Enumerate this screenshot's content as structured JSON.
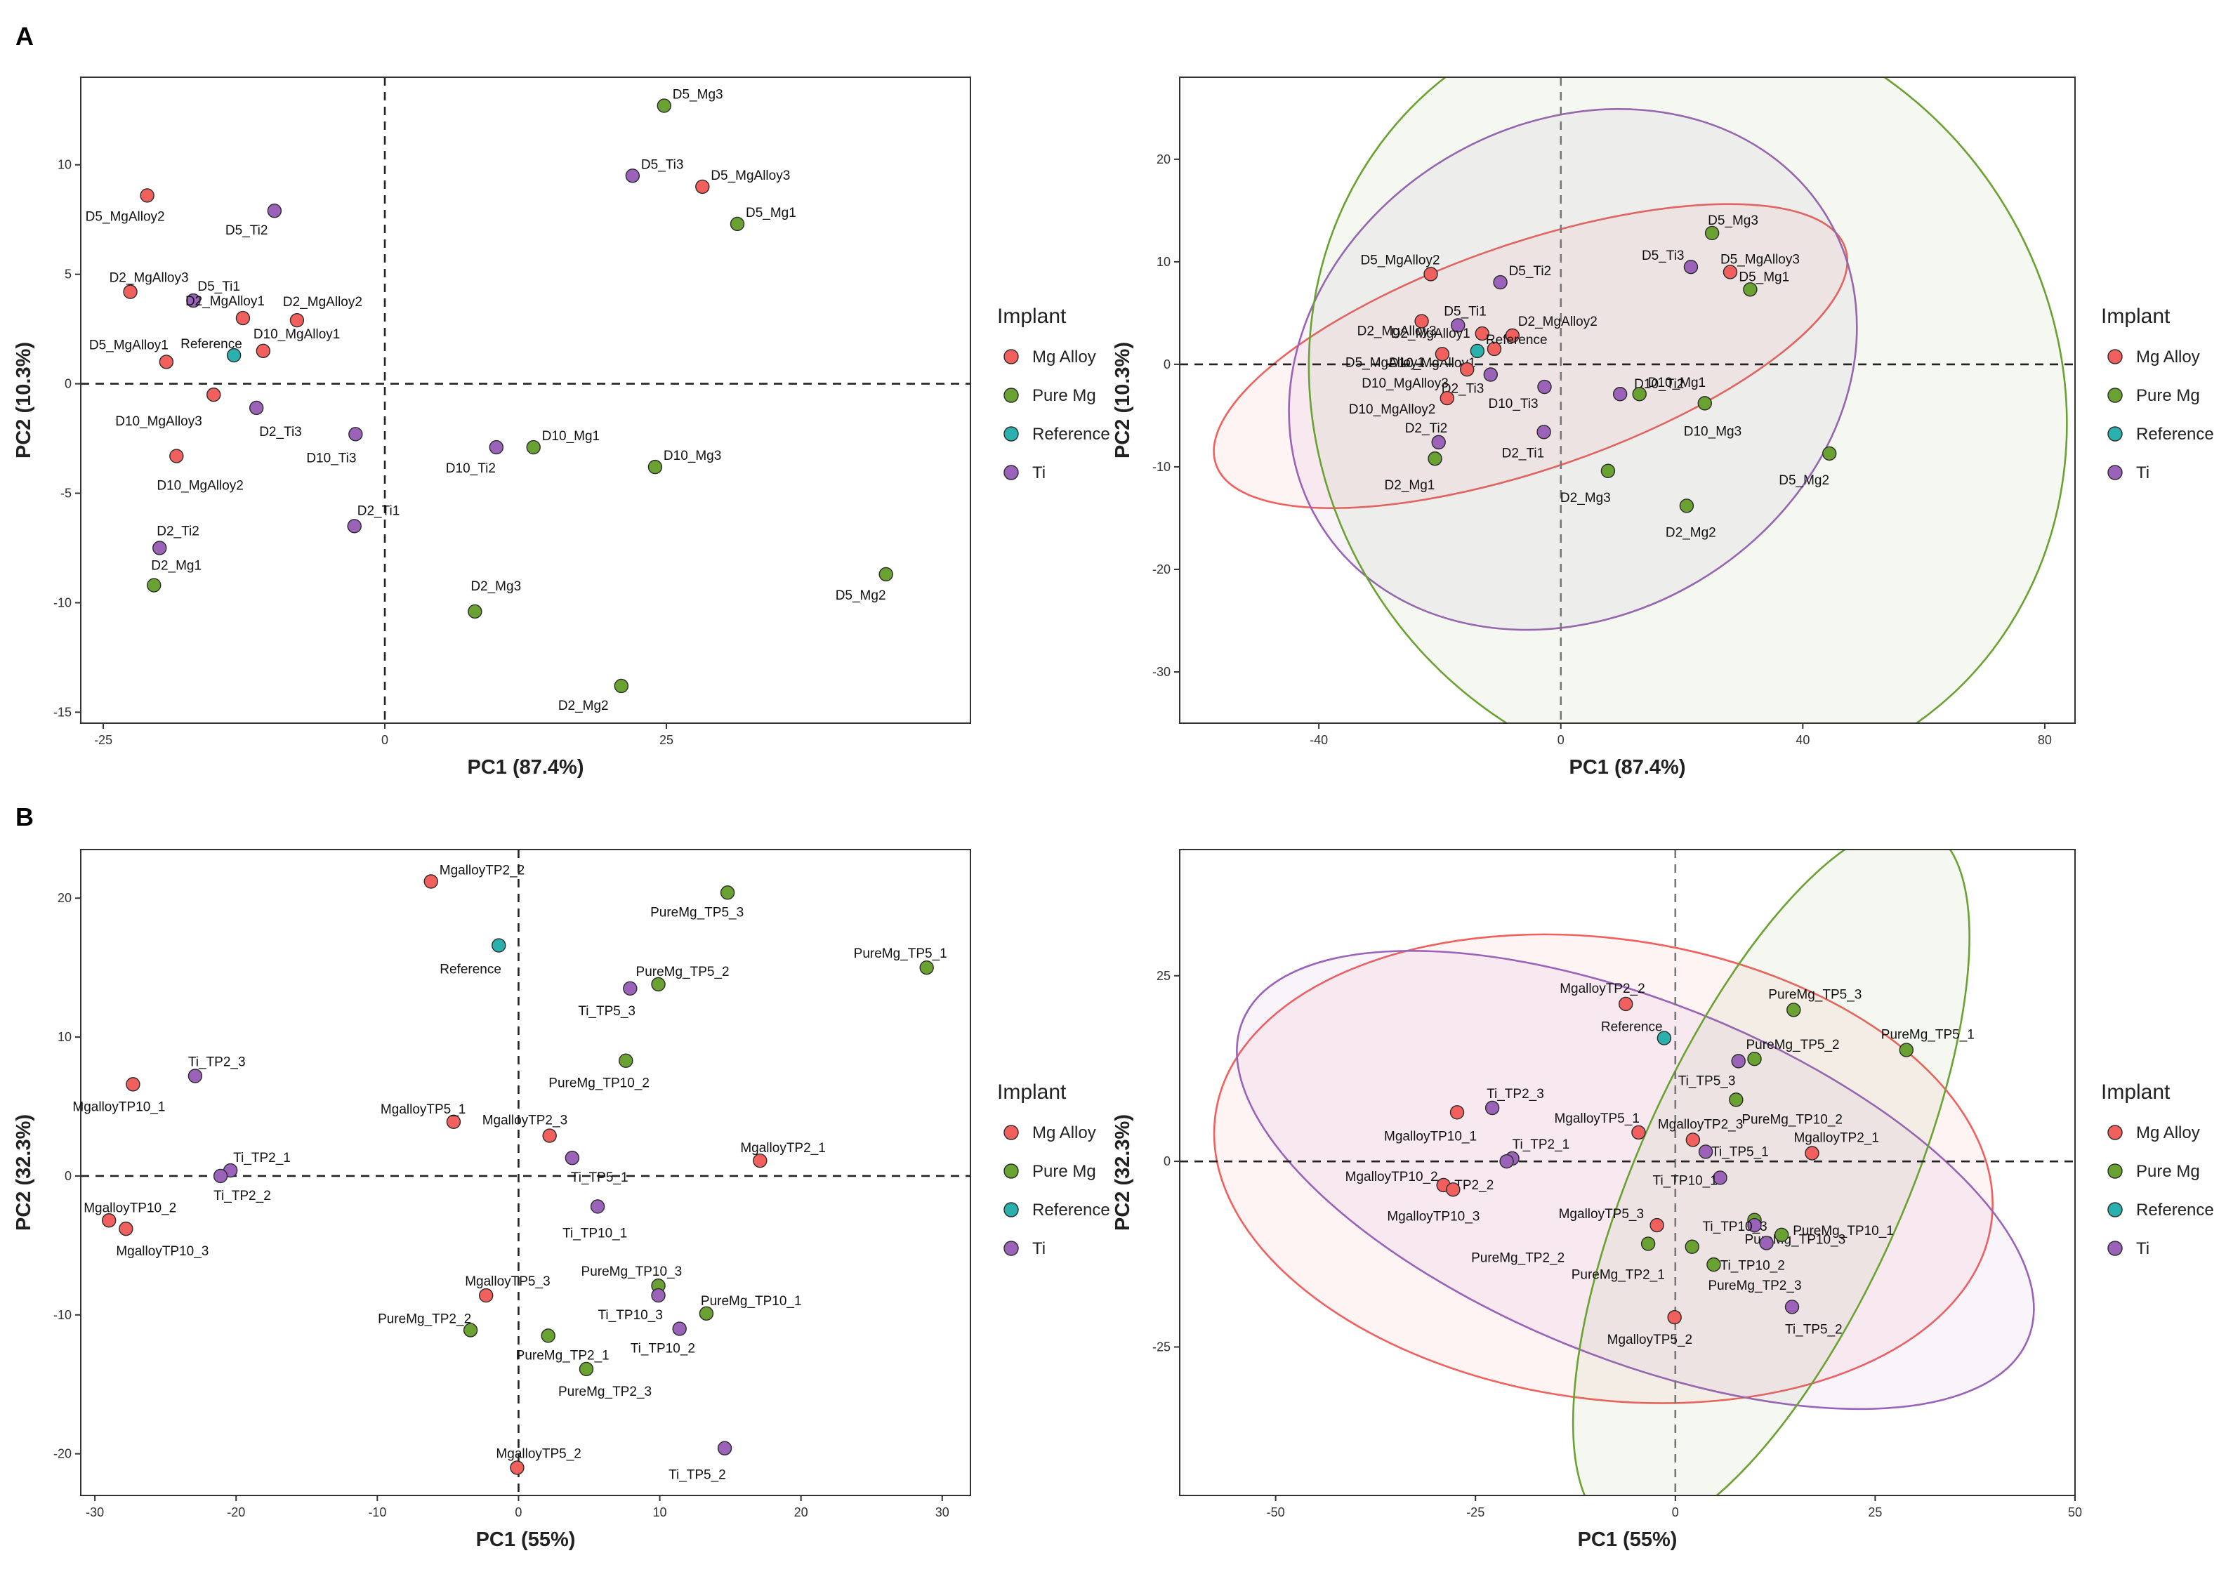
{
  "panels": [
    {
      "letter": "A"
    },
    {
      "letter": "B"
    }
  ],
  "colors": {
    "Mg Alloy": "#f1605d",
    "Pure Mg": "#6aa232",
    "Reference": "#2ab0ad",
    "Ti": "#9a62b8"
  },
  "legend": {
    "title": "Implant",
    "items": [
      "Mg Alloy",
      "Pure Mg",
      "Reference",
      "Ti"
    ]
  },
  "chart_data": [
    {
      "id": "A-left",
      "type": "scatter",
      "xlabel": "PC1 (87.4%)",
      "ylabel": "PC2 (10.3%)",
      "xlim": [
        -27,
        52
      ],
      "ylim": [
        -15.5,
        14
      ],
      "xticks": [
        -25,
        0,
        25
      ],
      "yticks": [
        -15,
        -10,
        -5,
        0,
        5,
        10
      ],
      "ellipses": false,
      "points": [
        {
          "label": "D5_Mg3",
          "group": "Pure Mg",
          "x": 24.8,
          "y": 12.7
        },
        {
          "label": "D5_Ti3",
          "group": "Ti",
          "x": 22.0,
          "y": 9.5
        },
        {
          "label": "D5_MgAlloy3",
          "group": "Mg Alloy",
          "x": 28.2,
          "y": 9.0
        },
        {
          "label": "D5_Mg1",
          "group": "Pure Mg",
          "x": 31.3,
          "y": 7.3
        },
        {
          "label": "D5_MgAlloy2",
          "group": "Mg Alloy",
          "x": -21.1,
          "y": 8.6
        },
        {
          "label": "D5_Ti2",
          "group": "Ti",
          "x": -9.8,
          "y": 7.9
        },
        {
          "label": "D2_MgAlloy3",
          "group": "Mg Alloy",
          "x": -22.6,
          "y": 4.2
        },
        {
          "label": "D5_Ti1",
          "group": "Ti",
          "x": -17.0,
          "y": 3.8
        },
        {
          "label": "D2_MgAlloy2",
          "group": "Mg Alloy",
          "x": -7.8,
          "y": 2.9
        },
        {
          "label": "D2_MgAlloy1",
          "group": "Mg Alloy",
          "x": -12.6,
          "y": 3.0
        },
        {
          "label": "D10_MgAlloy1",
          "group": "Mg Alloy",
          "x": -10.8,
          "y": 1.5
        },
        {
          "label": "Reference",
          "group": "Reference",
          "x": -13.4,
          "y": 1.3
        },
        {
          "label": "D5_MgAlloy1",
          "group": "Mg Alloy",
          "x": -19.4,
          "y": 1.0
        },
        {
          "label": "D10_MgAlloy3",
          "group": "Mg Alloy",
          "x": -15.2,
          "y": -0.5
        },
        {
          "label": "D2_Ti3",
          "group": "Ti",
          "x": -11.4,
          "y": -1.1
        },
        {
          "label": "D10_Ti3",
          "group": "Ti",
          "x": -2.6,
          "y": -2.3
        },
        {
          "label": "D10_MgAlloy2",
          "group": "Mg Alloy",
          "x": -18.5,
          "y": -3.3
        },
        {
          "label": "D10_Ti2",
          "group": "Ti",
          "x": 9.9,
          "y": -2.9
        },
        {
          "label": "D10_Mg1",
          "group": "Pure Mg",
          "x": 13.2,
          "y": -2.9
        },
        {
          "label": "D10_Mg3",
          "group": "Pure Mg",
          "x": 24.0,
          "y": -3.8
        },
        {
          "label": "D2_Ti1",
          "group": "Ti",
          "x": -2.7,
          "y": -6.5
        },
        {
          "label": "D2_Ti2",
          "group": "Ti",
          "x": -20.0,
          "y": -7.5
        },
        {
          "label": "D2_Mg1",
          "group": "Pure Mg",
          "x": -20.5,
          "y": -9.2
        },
        {
          "label": "D2_Mg3",
          "group": "Pure Mg",
          "x": 8.0,
          "y": -10.4
        },
        {
          "label": "D5_Mg2",
          "group": "Pure Mg",
          "x": 44.5,
          "y": -8.7
        },
        {
          "label": "D2_Mg2",
          "group": "Pure Mg",
          "x": 21.0,
          "y": -13.8
        }
      ]
    },
    {
      "id": "A-right",
      "type": "scatter",
      "xlabel": "PC1 (87.4%)",
      "ylabel": "PC2 (10.3%)",
      "xlim": [
        -63,
        85
      ],
      "ylim": [
        -35,
        28
      ],
      "xticks": [
        -40,
        0,
        40,
        80
      ],
      "yticks": [
        -30,
        -20,
        -10,
        0,
        10,
        20
      ],
      "ellipses": true,
      "points": [
        {
          "label": "D5_Mg3",
          "group": "Pure Mg",
          "x": 25.0,
          "y": 12.8
        },
        {
          "label": "D5_Ti3",
          "group": "Ti",
          "x": 21.5,
          "y": 9.5
        },
        {
          "label": "D5_MgAlloy3",
          "group": "Mg Alloy",
          "x": 28.0,
          "y": 9.0
        },
        {
          "label": "D5_Mg1",
          "group": "Pure Mg",
          "x": 31.3,
          "y": 7.3
        },
        {
          "label": "D5_MgAlloy2",
          "group": "Mg Alloy",
          "x": -21.5,
          "y": 8.8
        },
        {
          "label": "D5_Ti2",
          "group": "Ti",
          "x": -10.0,
          "y": 8.0
        },
        {
          "label": "D2_MgAlloy3",
          "group": "Mg Alloy",
          "x": -23.0,
          "y": 4.2
        },
        {
          "label": "D5_Ti1",
          "group": "Ti",
          "x": -17.0,
          "y": 3.8
        },
        {
          "label": "D2_MgAlloy2",
          "group": "Mg Alloy",
          "x": -8.0,
          "y": 2.8
        },
        {
          "label": "D2_MgAlloy1",
          "group": "Mg Alloy",
          "x": -13.0,
          "y": 3.0
        },
        {
          "label": "D10_MgAlloy1",
          "group": "Mg Alloy",
          "x": -11.0,
          "y": 1.5
        },
        {
          "label": "Reference",
          "group": "Reference",
          "x": -13.8,
          "y": 1.3
        },
        {
          "label": "D5_MgAlloy1",
          "group": "Mg Alloy",
          "x": -19.6,
          "y": 1.0
        },
        {
          "label": "D10_MgAlloy3",
          "group": "Mg Alloy",
          "x": -15.5,
          "y": -0.5
        },
        {
          "label": "D2_Ti3",
          "group": "Ti",
          "x": -11.6,
          "y": -1.0
        },
        {
          "label": "D10_Ti3",
          "group": "Ti",
          "x": -2.7,
          "y": -2.2
        },
        {
          "label": "D10_MgAlloy2",
          "group": "Mg Alloy",
          "x": -18.8,
          "y": -3.3
        },
        {
          "label": "D10_Ti2",
          "group": "Ti",
          "x": 9.8,
          "y": -2.9
        },
        {
          "label": "D10_Mg1",
          "group": "Pure Mg",
          "x": 13.0,
          "y": -2.9
        },
        {
          "label": "D10_Mg3",
          "group": "Pure Mg",
          "x": 23.8,
          "y": -3.8
        },
        {
          "label": "D2_Ti1",
          "group": "Ti",
          "x": -2.8,
          "y": -6.6
        },
        {
          "label": "D2_Ti2",
          "group": "Ti",
          "x": -20.2,
          "y": -7.6
        },
        {
          "label": "D2_Mg1",
          "group": "Pure Mg",
          "x": -20.8,
          "y": -9.2
        },
        {
          "label": "D2_Mg3",
          "group": "Pure Mg",
          "x": 7.8,
          "y": -10.4
        },
        {
          "label": "D5_Mg2",
          "group": "Pure Mg",
          "x": 44.4,
          "y": -8.7
        },
        {
          "label": "D2_Mg2",
          "group": "Pure Mg",
          "x": 20.8,
          "y": -13.8
        }
      ],
      "ellipse_specs": [
        {
          "group": "Mg Alloy",
          "cx": -5,
          "cy": 0.8,
          "rx": 55,
          "ry": 11.0,
          "angle": 19
        },
        {
          "group": "Ti",
          "cx": 2,
          "cy": -0.5,
          "rx": 49,
          "ry": 24.0,
          "angle": 31
        },
        {
          "group": "Pure Mg",
          "cx": 21,
          "cy": -3.0,
          "rx": 61,
          "ry": 39.0,
          "angle": 34
        }
      ]
    },
    {
      "id": "B-left",
      "type": "scatter",
      "xlabel": "PC1 (55%)",
      "ylabel": "PC2 (32.3%)",
      "xlim": [
        -31,
        32
      ],
      "ylim": [
        -23,
        23.5
      ],
      "xticks": [
        -30,
        -20,
        -10,
        0,
        10,
        20,
        30
      ],
      "yticks": [
        -20,
        -10,
        0,
        10,
        20
      ],
      "ellipses": false,
      "points": [
        {
          "label": "MgalloyTP2_2",
          "group": "Mg Alloy",
          "x": -6.2,
          "y": 21.2
        },
        {
          "label": "PureMg_TP5_3",
          "group": "Pure Mg",
          "x": 14.8,
          "y": 20.4
        },
        {
          "label": "Reference",
          "group": "Reference",
          "x": -1.4,
          "y": 16.6
        },
        {
          "label": "PureMg_TP5_1",
          "group": "Pure Mg",
          "x": 28.9,
          "y": 15.0
        },
        {
          "label": "PureMg_TP5_2",
          "group": "Pure Mg",
          "x": 9.9,
          "y": 13.8
        },
        {
          "label": "Ti_TP5_3",
          "group": "Ti",
          "x": 7.9,
          "y": 13.5
        },
        {
          "label": "PureMg_TP10_2",
          "group": "Pure Mg",
          "x": 7.6,
          "y": 8.3
        },
        {
          "label": "Ti_TP2_3",
          "group": "Ti",
          "x": -22.9,
          "y": 7.2
        },
        {
          "label": "MgalloyTP10_1",
          "group": "Mg Alloy",
          "x": -27.3,
          "y": 6.6
        },
        {
          "label": "MgalloyTP5_1",
          "group": "Mg Alloy",
          "x": -4.6,
          "y": 3.9
        },
        {
          "label": "MgalloyTP2_3",
          "group": "Mg Alloy",
          "x": 2.2,
          "y": 2.9
        },
        {
          "label": "MgalloyTP2_1",
          "group": "Mg Alloy",
          "x": 17.1,
          "y": 1.1
        },
        {
          "label": "Ti_TP5_1",
          "group": "Ti",
          "x": 3.8,
          "y": 1.3
        },
        {
          "label": "Ti_TP2_1",
          "group": "Ti",
          "x": -20.4,
          "y": 0.4
        },
        {
          "label": "Ti_TP2_2",
          "group": "Ti",
          "x": -21.1,
          "y": 0.0
        },
        {
          "label": "Ti_TP10_1",
          "group": "Ti",
          "x": 5.6,
          "y": -2.2
        },
        {
          "label": "MgalloyTP10_2",
          "group": "Mg Alloy",
          "x": -29.0,
          "y": -3.2
        },
        {
          "label": "MgalloyTP10_3",
          "group": "Mg Alloy",
          "x": -27.8,
          "y": -3.8
        },
        {
          "label": "PureMg_TP10_3",
          "group": "Pure Mg",
          "x": 9.9,
          "y": -7.9
        },
        {
          "label": "MgalloyTP5_3",
          "group": "Mg Alloy",
          "x": -2.3,
          "y": -8.6
        },
        {
          "label": "Ti_TP10_3",
          "group": "Ti",
          "x": 9.9,
          "y": -8.6
        },
        {
          "label": "PureMg_TP10_1",
          "group": "Pure Mg",
          "x": 13.3,
          "y": -9.9
        },
        {
          "label": "PureMg_TP2_2",
          "group": "Pure Mg",
          "x": -3.4,
          "y": -11.1
        },
        {
          "label": "Ti_TP10_2",
          "group": "Ti",
          "x": 11.4,
          "y": -11.0
        },
        {
          "label": "PureMg_TP2_1",
          "group": "Pure Mg",
          "x": 2.1,
          "y": -11.5
        },
        {
          "label": "PureMg_TP2_3",
          "group": "Pure Mg",
          "x": 4.8,
          "y": -13.9
        },
        {
          "label": "Ti_TP5_2",
          "group": "Ti",
          "x": 14.6,
          "y": -19.6
        },
        {
          "label": "MgalloyTP5_2",
          "group": "Mg Alloy",
          "x": -0.1,
          "y": -21.0
        }
      ]
    },
    {
      "id": "B-right",
      "type": "scatter",
      "xlabel": "PC1 (55%)",
      "ylabel": "PC2 (32.3%)",
      "xlim": [
        -62,
        50
      ],
      "ylim": [
        -45,
        42
      ],
      "xticks": [
        -50,
        -25,
        0,
        25,
        50
      ],
      "yticks": [
        -25,
        0,
        25
      ],
      "ellipses": true,
      "points": [
        {
          "label": "MgalloyTP2_2",
          "group": "Mg Alloy",
          "x": -6.2,
          "y": 21.2
        },
        {
          "label": "PureMg_TP5_3",
          "group": "Pure Mg",
          "x": 14.8,
          "y": 20.4
        },
        {
          "label": "Reference",
          "group": "Reference",
          "x": -1.4,
          "y": 16.6
        },
        {
          "label": "PureMg_TP5_1",
          "group": "Pure Mg",
          "x": 28.9,
          "y": 15.0
        },
        {
          "label": "PureMg_TP5_2",
          "group": "Pure Mg",
          "x": 9.9,
          "y": 13.8
        },
        {
          "label": "Ti_TP5_3",
          "group": "Ti",
          "x": 7.9,
          "y": 13.5
        },
        {
          "label": "PureMg_TP10_2",
          "group": "Pure Mg",
          "x": 7.6,
          "y": 8.3
        },
        {
          "label": "Ti_TP2_3",
          "group": "Ti",
          "x": -22.9,
          "y": 7.2
        },
        {
          "label": "MgalloyTP10_1",
          "group": "Mg Alloy",
          "x": -27.3,
          "y": 6.6
        },
        {
          "label": "MgalloyTP5_1",
          "group": "Mg Alloy",
          "x": -4.6,
          "y": 3.9
        },
        {
          "label": "MgalloyTP2_3",
          "group": "Mg Alloy",
          "x": 2.2,
          "y": 2.9
        },
        {
          "label": "MgalloyTP2_1",
          "group": "Mg Alloy",
          "x": 17.1,
          "y": 1.1
        },
        {
          "label": "Ti_TP5_1",
          "group": "Ti",
          "x": 3.8,
          "y": 1.3
        },
        {
          "label": "Ti_TP2_1",
          "group": "Ti",
          "x": -20.4,
          "y": 0.4
        },
        {
          "label": "Ti_TP2_2",
          "group": "Ti",
          "x": -21.1,
          "y": 0.0
        },
        {
          "label": "Ti_TP10_1",
          "group": "Ti",
          "x": 5.6,
          "y": -2.2
        },
        {
          "label": "MgalloyTP10_2",
          "group": "Mg Alloy",
          "x": -29.0,
          "y": -3.2
        },
        {
          "label": "MgalloyTP10_3",
          "group": "Mg Alloy",
          "x": -27.8,
          "y": -3.8
        },
        {
          "label": "PureMg_TP10_3",
          "group": "Pure Mg",
          "x": 9.9,
          "y": -7.9
        },
        {
          "label": "MgalloyTP5_3",
          "group": "Mg Alloy",
          "x": -2.3,
          "y": -8.6
        },
        {
          "label": "Ti_TP10_3",
          "group": "Ti",
          "x": 9.9,
          "y": -8.6
        },
        {
          "label": "PureMg_TP10_1",
          "group": "Pure Mg",
          "x": 13.3,
          "y": -9.9
        },
        {
          "label": "PureMg_TP2_2",
          "group": "Pure Mg",
          "x": -3.4,
          "y": -11.1
        },
        {
          "label": "Ti_TP10_2",
          "group": "Ti",
          "x": 11.4,
          "y": -11.0
        },
        {
          "label": "PureMg_TP2_1",
          "group": "Pure Mg",
          "x": 2.1,
          "y": -11.5
        },
        {
          "label": "PureMg_TP2_3",
          "group": "Pure Mg",
          "x": 4.8,
          "y": -13.9
        },
        {
          "label": "Ti_TP5_2",
          "group": "Ti",
          "x": 14.6,
          "y": -19.6
        },
        {
          "label": "MgalloyTP5_2",
          "group": "Mg Alloy",
          "x": -0.1,
          "y": -21.0
        }
      ],
      "ellipse_specs": [
        {
          "group": "Mg Alloy",
          "cx": -9,
          "cy": -1.0,
          "rx": 49,
          "ry": 31.0,
          "angle": -8
        },
        {
          "group": "Ti",
          "cx": -5,
          "cy": -2.5,
          "rx": 53,
          "ry": 24.0,
          "angle": -22
        },
        {
          "group": "Pure Mg",
          "cx": 12,
          "cy": -2.5,
          "rx": 48,
          "ry": 18.0,
          "angle": 66
        }
      ]
    }
  ]
}
